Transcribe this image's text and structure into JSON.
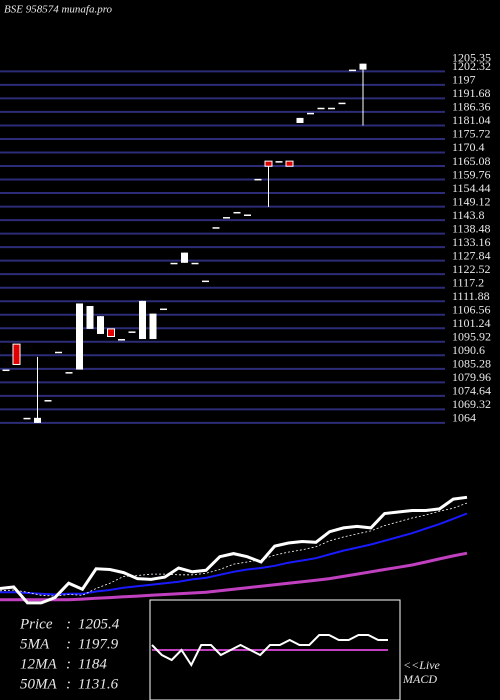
{
  "chart_data": {
    "type": "candlestick",
    "title": "BSE 958574 munafa.pro",
    "candles": [
      {
        "open": 1085,
        "high": 1085,
        "low": 1085,
        "close": 1085
      },
      {
        "open": 1095,
        "high": 1095,
        "low": 1087,
        "close": 1087
      },
      {
        "open": 1066,
        "high": 1066,
        "low": 1066,
        "close": 1066
      },
      {
        "open": 1064,
        "high": 1090,
        "low": 1064,
        "close": 1066
      },
      {
        "open": 1073,
        "high": 1073,
        "low": 1073,
        "close": 1073
      },
      {
        "open": 1092,
        "high": 1092,
        "low": 1092,
        "close": 1092
      },
      {
        "open": 1084,
        "high": 1084,
        "low": 1084,
        "close": 1084
      },
      {
        "open": 1085,
        "high": 1111,
        "low": 1085,
        "close": 1111
      },
      {
        "open": 1101,
        "high": 1110,
        "low": 1101,
        "close": 1110
      },
      {
        "open": 1099,
        "high": 1106,
        "low": 1099,
        "close": 1106
      },
      {
        "open": 1101,
        "high": 1101,
        "low": 1098,
        "close": 1098
      },
      {
        "open": 1097,
        "high": 1097,
        "low": 1097,
        "close": 1097
      },
      {
        "open": 1100,
        "high": 1100,
        "low": 1100,
        "close": 1100
      },
      {
        "open": 1097,
        "high": 1112,
        "low": 1097,
        "close": 1112
      },
      {
        "open": 1097,
        "high": 1107,
        "low": 1097,
        "close": 1107
      },
      {
        "open": 1109,
        "high": 1109,
        "low": 1109,
        "close": 1109
      },
      {
        "open": 1127,
        "high": 1127,
        "low": 1127,
        "close": 1127
      },
      {
        "open": 1127,
        "high": 1131,
        "low": 1127,
        "close": 1131
      },
      {
        "open": 1127,
        "high": 1127,
        "low": 1127,
        "close": 1127
      },
      {
        "open": 1120,
        "high": 1120,
        "low": 1120,
        "close": 1120
      },
      {
        "open": 1141,
        "high": 1141,
        "low": 1141,
        "close": 1141
      },
      {
        "open": 1145,
        "high": 1145,
        "low": 1145,
        "close": 1145
      },
      {
        "open": 1147,
        "high": 1147,
        "low": 1147,
        "close": 1147
      },
      {
        "open": 1146,
        "high": 1146,
        "low": 1146,
        "close": 1146
      },
      {
        "open": 1160,
        "high": 1160,
        "low": 1160,
        "close": 1160
      },
      {
        "open": 1167,
        "high": 1167,
        "low": 1149,
        "close": 1165
      },
      {
        "open": 1167,
        "high": 1167,
        "low": 1167,
        "close": 1167
      },
      {
        "open": 1167,
        "high": 1167,
        "low": 1165,
        "close": 1165
      },
      {
        "open": 1182,
        "high": 1184,
        "low": 1182,
        "close": 1184
      },
      {
        "open": 1186,
        "high": 1186,
        "low": 1186,
        "close": 1186
      },
      {
        "open": 1188,
        "high": 1188,
        "low": 1188,
        "close": 1188
      },
      {
        "open": 1188,
        "high": 1188,
        "low": 1188,
        "close": 1188
      },
      {
        "open": 1190,
        "high": 1190,
        "low": 1190,
        "close": 1190
      },
      {
        "open": 1203,
        "high": 1203,
        "low": 1203,
        "close": 1203
      },
      {
        "open": 1203,
        "high": 1205.35,
        "low": 1181,
        "close": 1205.35
      }
    ],
    "up_color": "#ffffff",
    "down_color": "#e00000",
    "ylim": [
      1062,
      1206
    ],
    "yticks": [
      1064,
      1069.32,
      1074.64,
      1079.96,
      1085.28,
      1090.6,
      1095.92,
      1101.24,
      1106.56,
      1111.88,
      1117.2,
      1122.52,
      1127.84,
      1133.16,
      1138.48,
      1143.8,
      1149.12,
      1154.44,
      1159.76,
      1165.08,
      1170.4,
      1175.72,
      1181.04,
      1186.36,
      1191.68,
      1197,
      1202.32
    ],
    "last_price": 1205.35,
    "averages": {
      "ylim": [
        1050,
        1215
      ],
      "ma5": {
        "color": "#ffffff",
        "values": [
          1082,
          1083,
          1080,
          1076,
          1075,
          1077,
          1076,
          1085,
          1092,
          1101,
          1102,
          1104,
          1104,
          1103,
          1103,
          1105,
          1110,
          1117,
          1120,
          1123,
          1129,
          1133,
          1136,
          1140,
          1148,
          1153,
          1157,
          1161,
          1168,
          1173,
          1178,
          1182,
          1187,
          1191,
          1197.9
        ]
      },
      "ma12": {
        "color": "#1a1aff",
        "values": [
          1080,
          1080,
          1079,
          1078,
          1077,
          1078,
          1078,
          1081,
          1083,
          1086,
          1088,
          1090,
          1092,
          1094,
          1097,
          1099,
          1103,
          1107,
          1110,
          1112,
          1115,
          1119,
          1122,
          1125,
          1130,
          1135,
          1139,
          1143,
          1148,
          1153,
          1158,
          1164,
          1170,
          1177,
          1184
        ]
      },
      "ma50": {
        "color": "#c040c0",
        "values": [
          1070,
          1070,
          1070,
          1070,
          1070,
          1070,
          1071,
          1072,
          1073,
          1074,
          1075,
          1076,
          1077,
          1078,
          1079,
          1080,
          1082,
          1084,
          1086,
          1088,
          1090,
          1092,
          1094,
          1096,
          1098,
          1101,
          1104,
          1107,
          1110,
          1113,
          1116,
          1120,
          1124,
          1128,
          1131.6
        ]
      }
    },
    "info": [
      {
        "label": "Price",
        "value": 1205.4
      },
      {
        "label": "5MA",
        "value": 1197.9
      },
      {
        "label": "12MA",
        "value": 1184
      },
      {
        "label": "50MA",
        "value": 1131.6
      }
    ],
    "macd": {
      "ylim": [
        -10,
        10
      ],
      "line_color": "#ffffff",
      "signal_color": "#c040c0",
      "values": [
        1,
        -1,
        -2,
        0,
        -3,
        1,
        1,
        -1,
        0,
        1,
        0,
        -1,
        1,
        1,
        2,
        1,
        1,
        3,
        3,
        2,
        2,
        3,
        3,
        2,
        2
      ],
      "signal": [
        0,
        0,
        0,
        0,
        0,
        0,
        0,
        0,
        0,
        0,
        0,
        0,
        0,
        0,
        0,
        0,
        0,
        0,
        0,
        0,
        0,
        0,
        0,
        0,
        0
      ]
    },
    "live_label": "<<Live",
    "macd_label": "MACD"
  }
}
